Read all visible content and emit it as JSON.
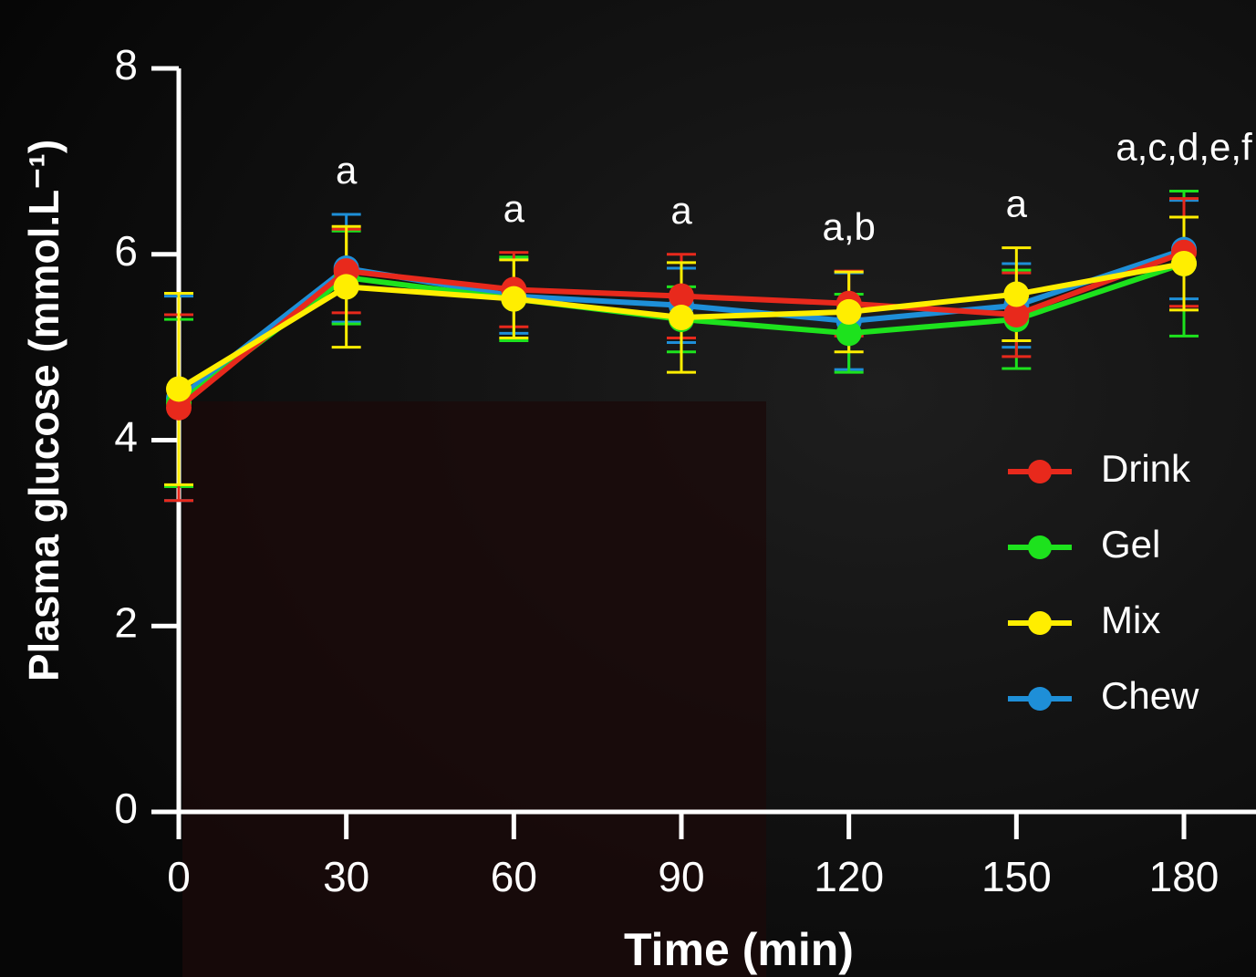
{
  "chart_data": {
    "type": "line",
    "xlabel": "Time (min)",
    "ylabel": "Plasma glucose (mmol.L⁻¹)",
    "x": [
      0,
      30,
      60,
      90,
      120,
      150,
      180
    ],
    "xlim": [
      0,
      180
    ],
    "xticks": [
      0,
      30,
      60,
      90,
      120,
      150,
      180
    ],
    "ylim": [
      0,
      8
    ],
    "yticks": [
      0,
      2,
      4,
      6,
      8
    ],
    "series": [
      {
        "name": "Drink",
        "color": "#e8291c",
        "values": [
          4.35,
          5.82,
          5.62,
          5.55,
          5.47,
          5.35,
          6.02
        ],
        "errors": [
          1.0,
          0.45,
          0.4,
          0.45,
          0.35,
          0.45,
          0.58
        ]
      },
      {
        "name": "Gel",
        "color": "#1de21d",
        "values": [
          4.4,
          5.75,
          5.52,
          5.3,
          5.15,
          5.3,
          5.9
        ],
        "errors": [
          0.9,
          0.5,
          0.45,
          0.35,
          0.42,
          0.53,
          0.78
        ]
      },
      {
        "name": "Mix",
        "color": "#ffee00",
        "values": [
          4.55,
          5.65,
          5.52,
          5.32,
          5.38,
          5.57,
          5.9
        ],
        "errors": [
          1.03,
          0.65,
          0.42,
          0.59,
          0.43,
          0.5,
          0.5
        ]
      },
      {
        "name": "Chew",
        "color": "#1e8fd8",
        "values": [
          4.45,
          5.85,
          5.55,
          5.45,
          5.28,
          5.45,
          6.05
        ],
        "errors": [
          1.1,
          0.58,
          0.4,
          0.4,
          0.52,
          0.45,
          0.53
        ]
      }
    ],
    "annotations": [
      {
        "x": 30,
        "text": "a"
      },
      {
        "x": 60,
        "text": "a"
      },
      {
        "x": 90,
        "text": "a"
      },
      {
        "x": 120,
        "text": "a,b"
      },
      {
        "x": 150,
        "text": "a"
      },
      {
        "x": 180,
        "text": "a,c,d,e,f"
      }
    ]
  }
}
